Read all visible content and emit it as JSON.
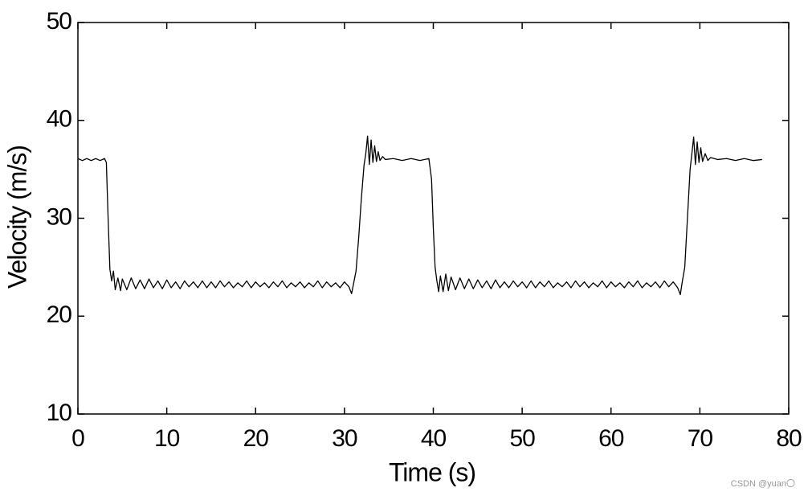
{
  "chart_data": {
    "type": "line",
    "x_label": "Time (s)",
    "y_label": "Velocity (m/s)",
    "watermark": "CSDN @yuan〇",
    "color": "#000000",
    "xlim": [
      0,
      80
    ],
    "ylim": [
      10,
      50
    ],
    "xticks": [
      0,
      10,
      20,
      30,
      40,
      50,
      60,
      70,
      80
    ],
    "yticks": [
      10,
      20,
      30,
      40,
      50
    ],
    "x": [
      0,
      0.5,
      1,
      1.5,
      2,
      2.5,
      3,
      3.2,
      3.4,
      3.6,
      3.8,
      4.0,
      4.2,
      4.5,
      4.8,
      5.0,
      5.5,
      6.0,
      6.5,
      7.0,
      7.5,
      8.0,
      8.5,
      9.0,
      9.5,
      10,
      10.5,
      11,
      11.5,
      12,
      12.5,
      13,
      13.5,
      14,
      14.5,
      15,
      15.5,
      16,
      16.5,
      17,
      17.5,
      18,
      18.5,
      19,
      19.5,
      20,
      20.5,
      21,
      21.5,
      22,
      22.5,
      23,
      23.5,
      24,
      24.5,
      25,
      25.5,
      26,
      26.5,
      27,
      27.5,
      28,
      28.5,
      29,
      29.5,
      30,
      30.5,
      30.8,
      31.0,
      31.3,
      31.6,
      31.9,
      32.2,
      32.4,
      32.6,
      32.8,
      33.0,
      33.2,
      33.4,
      33.6,
      33.8,
      34.0,
      34.3,
      34.6,
      35.5,
      36.5,
      37.5,
      38.5,
      39.5,
      39.8,
      40.0,
      40.2,
      40.4,
      40.6,
      40.8,
      41.1,
      41.4,
      41.7,
      42.0,
      42.5,
      43,
      43.5,
      44,
      44.5,
      45,
      45.5,
      46,
      46.5,
      47,
      47.5,
      48,
      48.5,
      49,
      49.5,
      50,
      50.5,
      51,
      51.5,
      52,
      52.5,
      53,
      53.5,
      54,
      54.5,
      55,
      55.5,
      56,
      56.5,
      57,
      57.5,
      58,
      58.5,
      59,
      59.5,
      60,
      60.5,
      61,
      61.5,
      62,
      62.5,
      63,
      63.5,
      64,
      64.5,
      65,
      65.5,
      66,
      66.5,
      67,
      67.5,
      67.8,
      68.0,
      68.3,
      68.6,
      68.9,
      69.1,
      69.3,
      69.5,
      69.7,
      69.9,
      70.1,
      70.3,
      70.6,
      70.9,
      71.2,
      72,
      73,
      74,
      75,
      76,
      77
    ],
    "values": [
      36.1,
      35.9,
      36.1,
      35.9,
      36.1,
      35.9,
      36.1,
      35.7,
      30,
      24.8,
      23.6,
      24.6,
      22.7,
      23.9,
      22.6,
      23.8,
      22.7,
      23.9,
      22.8,
      23.7,
      22.8,
      23.8,
      22.9,
      23.6,
      22.8,
      23.7,
      22.9,
      23.5,
      22.8,
      23.6,
      23.0,
      23.5,
      22.9,
      23.6,
      22.9,
      23.5,
      22.9,
      23.6,
      23.0,
      23.5,
      22.9,
      23.4,
      23.0,
      23.6,
      22.9,
      23.5,
      23.0,
      23.4,
      22.9,
      23.5,
      23.0,
      23.6,
      22.9,
      23.4,
      23.0,
      23.5,
      22.9,
      23.4,
      23.0,
      23.6,
      22.9,
      23.5,
      23.0,
      23.4,
      22.9,
      23.5,
      23.0,
      22.3,
      23.2,
      24.6,
      28,
      32,
      35.4,
      36.6,
      38.4,
      35.5,
      38.0,
      35.7,
      37.4,
      35.8,
      36.8,
      35.9,
      36.3,
      36.0,
      36.1,
      35.9,
      36.1,
      35.9,
      36.1,
      34,
      29,
      25,
      23.6,
      22.5,
      24.1,
      22.5,
      24.3,
      22.6,
      24.0,
      22.7,
      23.9,
      22.8,
      23.8,
      22.8,
      23.7,
      22.9,
      23.6,
      22.8,
      23.7,
      22.9,
      23.5,
      22.9,
      23.6,
      23.0,
      23.5,
      22.9,
      23.6,
      22.9,
      23.5,
      23.0,
      23.6,
      22.9,
      23.4,
      23.0,
      23.5,
      22.9,
      23.6,
      23.0,
      23.5,
      22.9,
      23.4,
      23.0,
      23.6,
      22.9,
      23.5,
      23.0,
      23.4,
      22.9,
      23.5,
      23.0,
      23.6,
      22.9,
      23.4,
      23.0,
      23.5,
      22.9,
      23.6,
      23.0,
      23.5,
      22.9,
      22.2,
      23.4,
      25,
      30,
      35,
      36.6,
      38.3,
      35.5,
      37.8,
      35.7,
      37.2,
      35.8,
      36.6,
      35.9,
      36.2,
      36.0,
      36.1,
      35.9,
      36.1,
      35.9,
      36.0
    ]
  }
}
